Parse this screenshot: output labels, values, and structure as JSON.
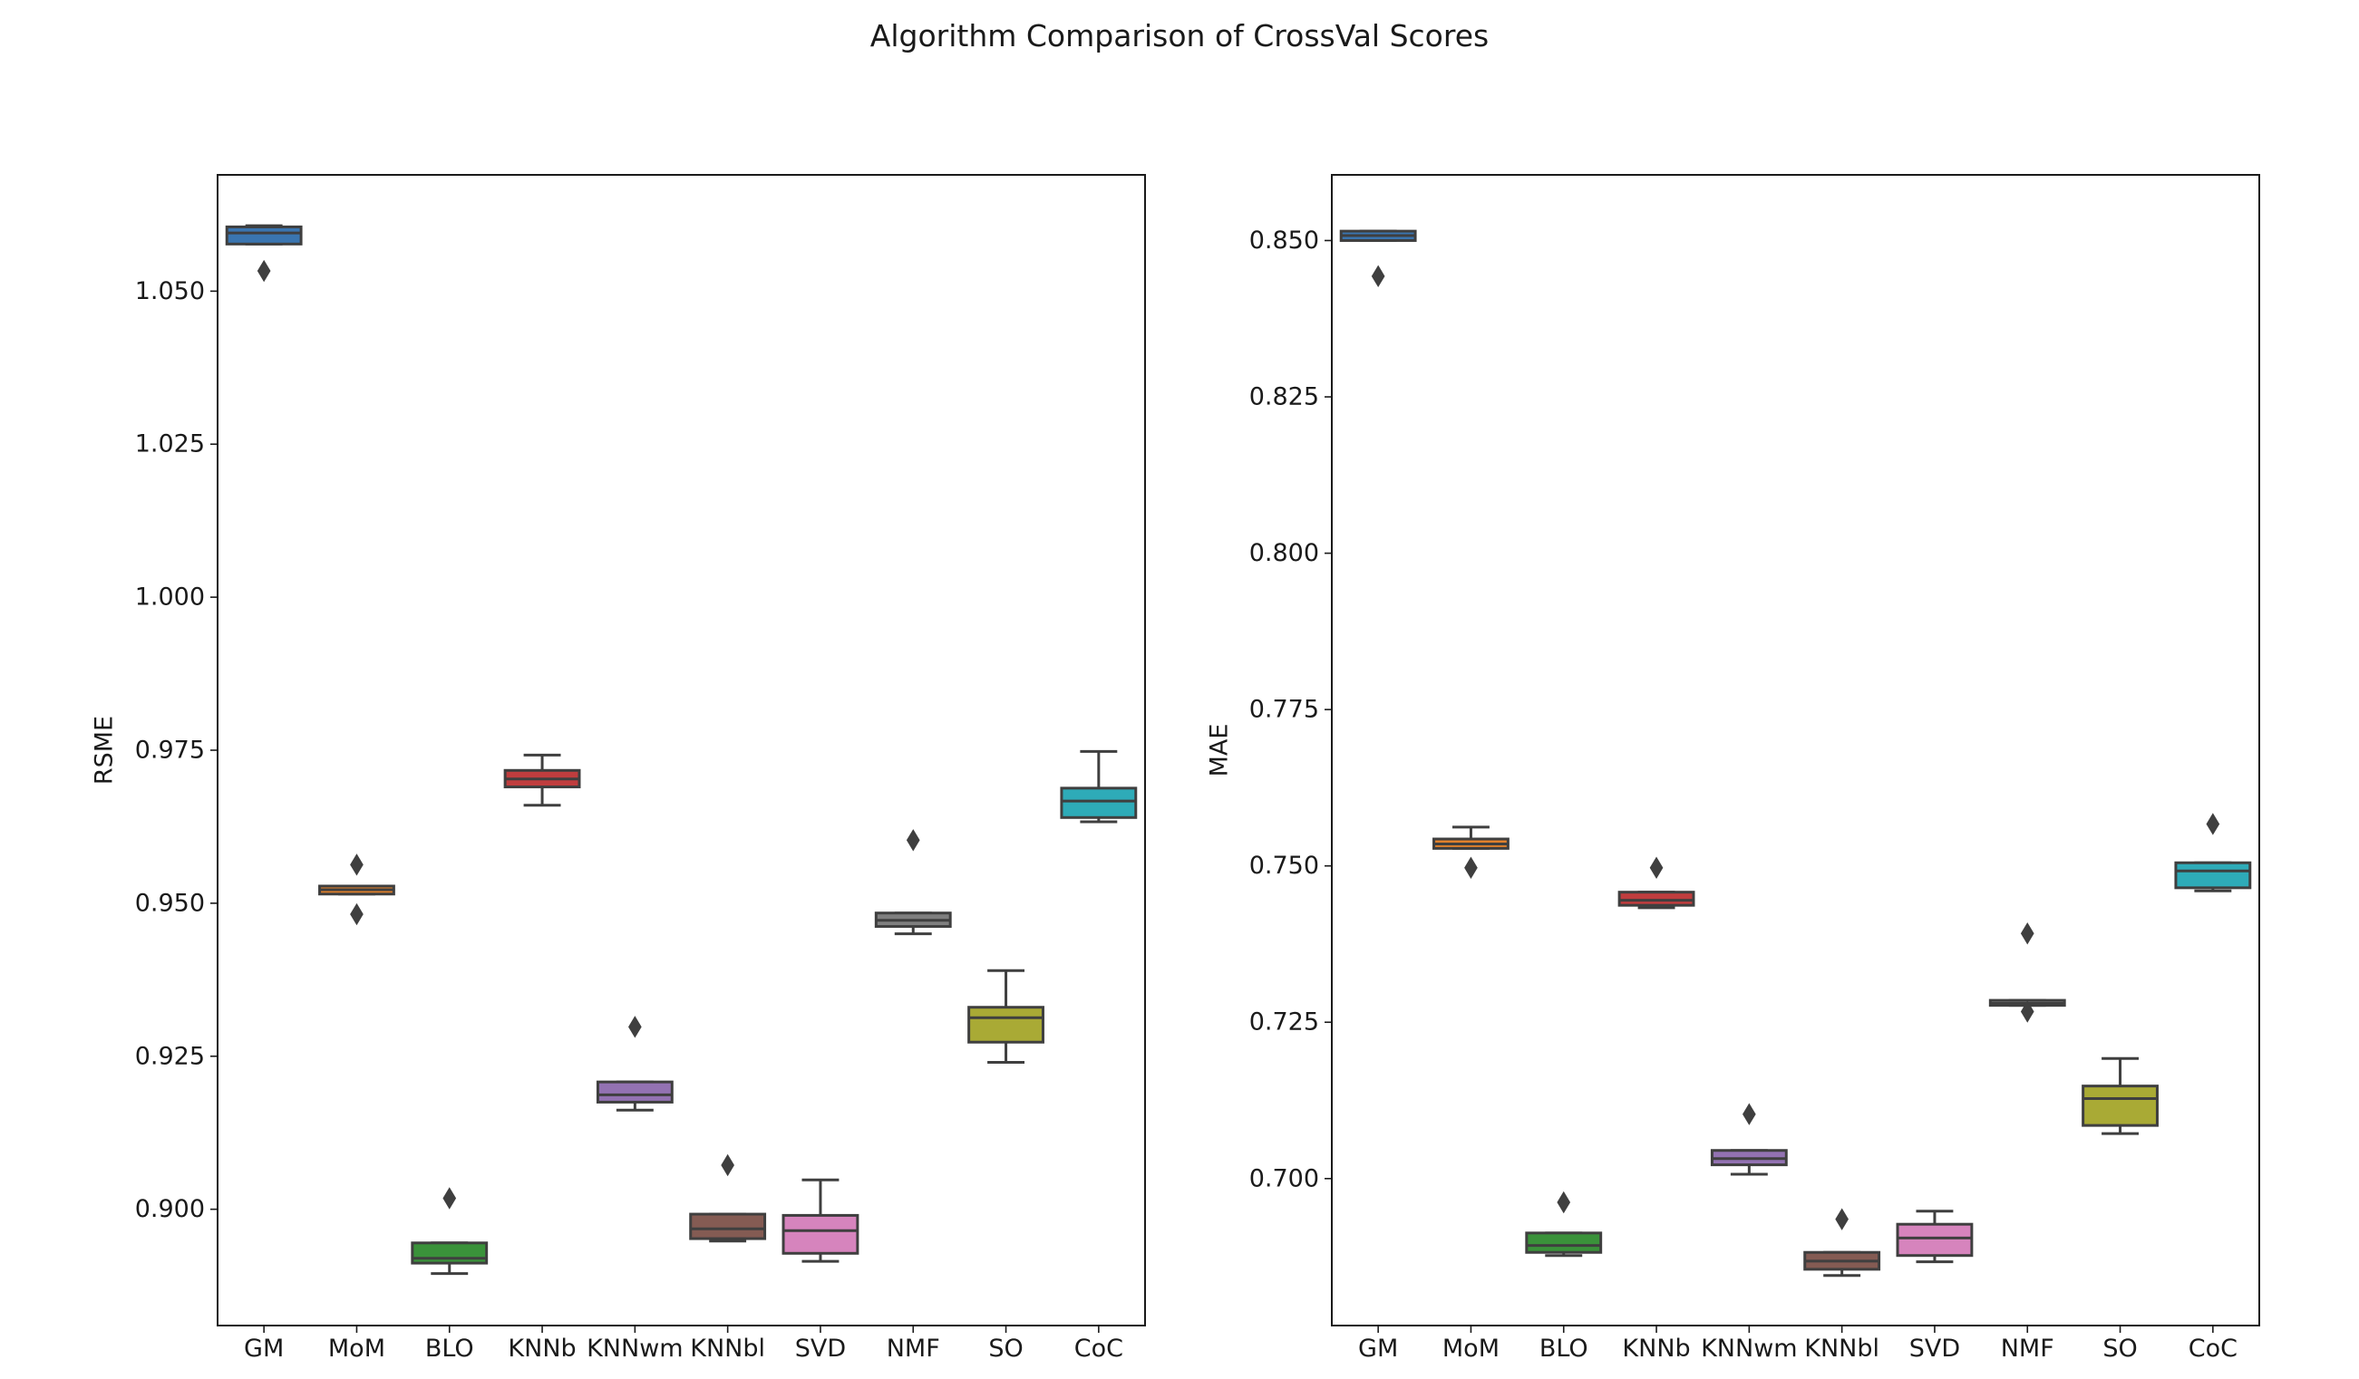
{
  "title": "Algorithm Comparison of CrossVal Scores",
  "chart_data": [
    {
      "type": "box",
      "xlabel": "",
      "ylabel": "RSME",
      "ylim": [
        0.881,
        1.069
      ],
      "yticks": [
        0.9,
        0.925,
        0.95,
        0.975,
        1.0,
        1.025,
        1.05
      ],
      "ytick_labels": [
        "0.900",
        "0.925",
        "0.950",
        "0.975",
        "1.000",
        "1.025",
        "1.050"
      ],
      "categories": [
        "GM",
        "MoM",
        "BLO",
        "KNNb",
        "KNNwm",
        "KNNbl",
        "SVD",
        "NMF",
        "SO",
        "CoC"
      ],
      "boxes": [
        {
          "whislo": 1.0577,
          "q1": 1.0577,
          "med": 1.0595,
          "q3": 1.0605,
          "whishi": 1.0607,
          "fliers": [
            1.0533
          ],
          "color": "#3a75b0"
        },
        {
          "whislo": 0.9515,
          "q1": 0.9515,
          "med": 0.9522,
          "q3": 0.9528,
          "whishi": 0.9528,
          "fliers": [
            0.9563,
            0.9482
          ],
          "color": "#e1812c"
        },
        {
          "whislo": 0.8895,
          "q1": 0.8912,
          "med": 0.892,
          "q3": 0.8945,
          "whishi": 0.8945,
          "fliers": [
            0.9018
          ],
          "color": "#3a923a"
        },
        {
          "whislo": 0.966,
          "q1": 0.969,
          "med": 0.9703,
          "q3": 0.9717,
          "whishi": 0.9742,
          "fliers": [],
          "color": "#c03d3e"
        },
        {
          "whislo": 0.9162,
          "q1": 0.9175,
          "med": 0.9187,
          "q3": 0.9208,
          "whishi": 0.9208,
          "fliers": [
            0.9298
          ],
          "color": "#9372b2"
        },
        {
          "whislo": 0.8948,
          "q1": 0.8952,
          "med": 0.8968,
          "q3": 0.8992,
          "whishi": 0.8992,
          "fliers": [
            0.9072
          ],
          "color": "#845b53"
        },
        {
          "whislo": 0.8915,
          "q1": 0.8928,
          "med": 0.8965,
          "q3": 0.899,
          "whishi": 0.9048,
          "fliers": [],
          "color": "#d684bd"
        },
        {
          "whislo": 0.945,
          "q1": 0.9462,
          "med": 0.9472,
          "q3": 0.9484,
          "whishi": 0.9484,
          "fliers": [
            0.9603
          ],
          "color": "#7f7f7f"
        },
        {
          "whislo": 0.924,
          "q1": 0.9273,
          "med": 0.9313,
          "q3": 0.933,
          "whishi": 0.939,
          "fliers": [],
          "color": "#a9aa35"
        },
        {
          "whislo": 0.9633,
          "q1": 0.964,
          "med": 0.9667,
          "q3": 0.9688,
          "whishi": 0.9748,
          "fliers": [],
          "color": "#2eabb8"
        }
      ]
    },
    {
      "type": "box",
      "xlabel": "",
      "ylabel": "MAE",
      "ylim": [
        0.6765,
        0.8605
      ],
      "yticks": [
        0.7,
        0.725,
        0.75,
        0.775,
        0.8,
        0.825,
        0.85
      ],
      "ytick_labels": [
        "0.700",
        "0.725",
        "0.750",
        "0.775",
        "0.800",
        "0.825",
        "0.850"
      ],
      "categories": [
        "GM",
        "MoM",
        "BLO",
        "KNNb",
        "KNNwm",
        "KNNbl",
        "SVD",
        "NMF",
        "SO",
        "CoC"
      ],
      "boxes": [
        {
          "whislo": 0.85,
          "q1": 0.85,
          "med": 0.8508,
          "q3": 0.8515,
          "whishi": 0.8515,
          "fliers": [
            0.8443
          ],
          "color": "#3a75b0"
        },
        {
          "whislo": 0.7528,
          "q1": 0.7528,
          "med": 0.7535,
          "q3": 0.7543,
          "whishi": 0.7562,
          "fliers": [
            0.7497
          ],
          "color": "#e1812c"
        },
        {
          "whislo": 0.6877,
          "q1": 0.6882,
          "med": 0.6893,
          "q3": 0.6913,
          "whishi": 0.6913,
          "fliers": [
            0.6962
          ],
          "color": "#3a923a"
        },
        {
          "whislo": 0.7433,
          "q1": 0.7437,
          "med": 0.7445,
          "q3": 0.7458,
          "whishi": 0.7458,
          "fliers": [
            0.7497
          ],
          "color": "#c03d3e"
        },
        {
          "whislo": 0.7007,
          "q1": 0.7022,
          "med": 0.7032,
          "q3": 0.7045,
          "whishi": 0.7045,
          "fliers": [
            0.7103
          ],
          "color": "#9372b2"
        },
        {
          "whislo": 0.6845,
          "q1": 0.6855,
          "med": 0.6868,
          "q3": 0.6882,
          "whishi": 0.6882,
          "fliers": [
            0.6935
          ],
          "color": "#845b53"
        },
        {
          "whislo": 0.6867,
          "q1": 0.6877,
          "med": 0.6905,
          "q3": 0.6927,
          "whishi": 0.6948,
          "fliers": [],
          "color": "#d684bd"
        },
        {
          "whislo": 0.7277,
          "q1": 0.7277,
          "med": 0.728,
          "q3": 0.7285,
          "whishi": 0.7285,
          "fliers": [
            0.7392,
            0.7267
          ],
          "color": "#7f7f7f"
        },
        {
          "whislo": 0.7072,
          "q1": 0.7085,
          "med": 0.7128,
          "q3": 0.7148,
          "whishi": 0.7192,
          "fliers": [],
          "color": "#a9aa35"
        },
        {
          "whislo": 0.746,
          "q1": 0.7465,
          "med": 0.7492,
          "q3": 0.7505,
          "whishi": 0.7505,
          "fliers": [
            0.7567
          ],
          "color": "#2eabb8"
        }
      ]
    }
  ]
}
